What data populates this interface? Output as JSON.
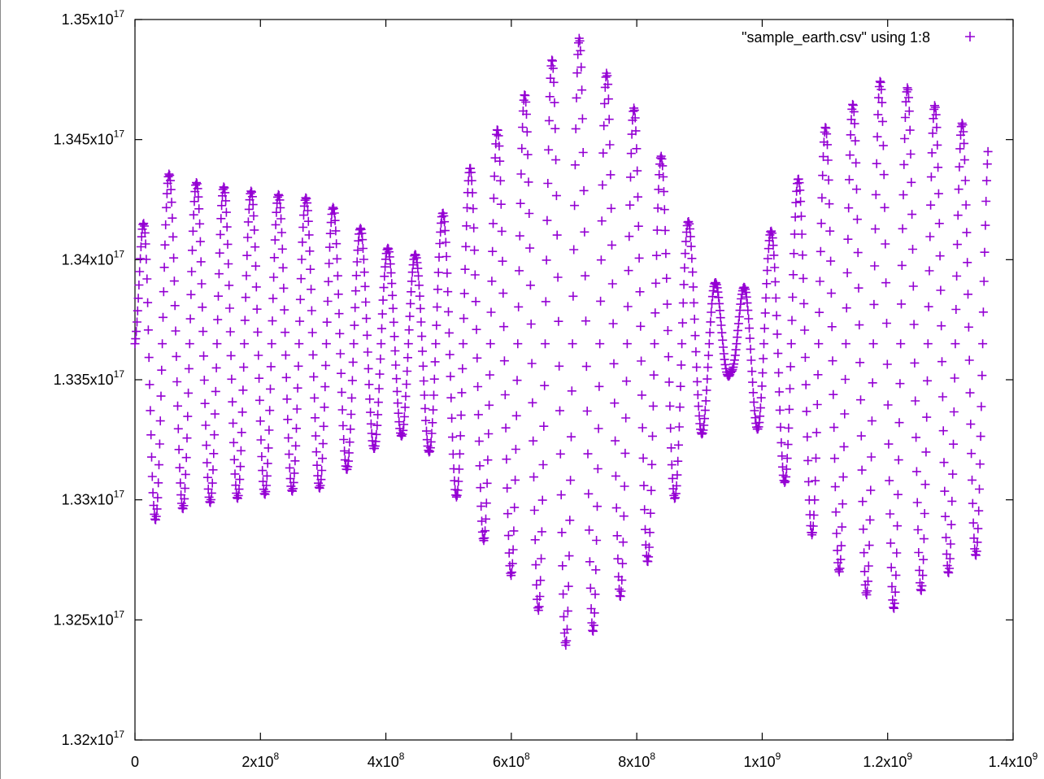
{
  "chart_data": {
    "type": "scatter",
    "title": "",
    "xlabel": "",
    "ylabel": "",
    "xlim": [
      0,
      1400000000
    ],
    "ylim": [
      1.32e+17,
      1.35e+17
    ],
    "grid": false,
    "legend_position": "top-right",
    "marker": "+",
    "marker_color": "#9400d3",
    "x_ticks": [
      {
        "value": 0,
        "mantissa": "0",
        "exp": ""
      },
      {
        "value": 200000000,
        "mantissa": "2x10",
        "exp": "8"
      },
      {
        "value": 400000000,
        "mantissa": "4x10",
        "exp": "8"
      },
      {
        "value": 600000000,
        "mantissa": "6x10",
        "exp": "8"
      },
      {
        "value": 800000000,
        "mantissa": "8x10",
        "exp": "8"
      },
      {
        "value": 1000000000,
        "mantissa": "1x10",
        "exp": "9"
      },
      {
        "value": 1200000000,
        "mantissa": "1.2x10",
        "exp": "9"
      },
      {
        "value": 1400000000,
        "mantissa": "1.4x10",
        "exp": "9"
      }
    ],
    "y_ticks": [
      {
        "value": 1.32e+17,
        "mantissa": "1.32x10",
        "exp": "17"
      },
      {
        "value": 1.325e+17,
        "mantissa": "1.325x10",
        "exp": "17"
      },
      {
        "value": 1.33e+17,
        "mantissa": "1.33x10",
        "exp": "17"
      },
      {
        "value": 1.335e+17,
        "mantissa": "1.335x10",
        "exp": "17"
      },
      {
        "value": 1.34e+17,
        "mantissa": "1.34x10",
        "exp": "17"
      },
      {
        "value": 1.345e+17,
        "mantissa": "1.345x10",
        "exp": "17"
      },
      {
        "value": 1.35e+17,
        "mantissa": "1.35x10",
        "exp": "17"
      }
    ],
    "series": [
      {
        "name": "\"sample_earth.csv\" using 1:8",
        "x_start": 0,
        "x_end": 1360000000,
        "sample_count": 1280,
        "center": 1.3365e+17,
        "amplitude_envelope": [
          {
            "x": 0,
            "half_range": 100000000000000.0
          },
          {
            "x": 20000000,
            "half_range": 750000000000000.0
          },
          {
            "x": 60000000,
            "half_range": 700000000000000.0
          },
          {
            "x": 100000000,
            "half_range": 670000000000000.0
          },
          {
            "x": 200000000,
            "half_range": 630000000000000.0
          },
          {
            "x": 300000000,
            "half_range": 600000000000000.0
          },
          {
            "x": 400000000,
            "half_range": 400000000000000.0
          },
          {
            "x": 450000000,
            "half_range": 370000000000000.0
          },
          {
            "x": 550000000,
            "half_range": 800000000000000.0
          },
          {
            "x": 700000000,
            "half_range": 1300000000000000.0
          },
          {
            "x": 820000000,
            "half_range": 900000000000000.0
          },
          {
            "x": 900000000,
            "half_range": 400000000000000.0
          },
          {
            "x": 950000000,
            "half_range": 120000000000000.0
          },
          {
            "x": 1000000000,
            "half_range": 400000000000000.0
          },
          {
            "x": 1100000000,
            "half_range": 900000000000000.0
          },
          {
            "x": 1200000000,
            "half_range": 1120000000000000.0
          },
          {
            "x": 1300000000,
            "half_range": 950000000000000.0
          },
          {
            "x": 1360000000,
            "half_range": 850000000000000.0
          }
        ]
      }
    ]
  }
}
